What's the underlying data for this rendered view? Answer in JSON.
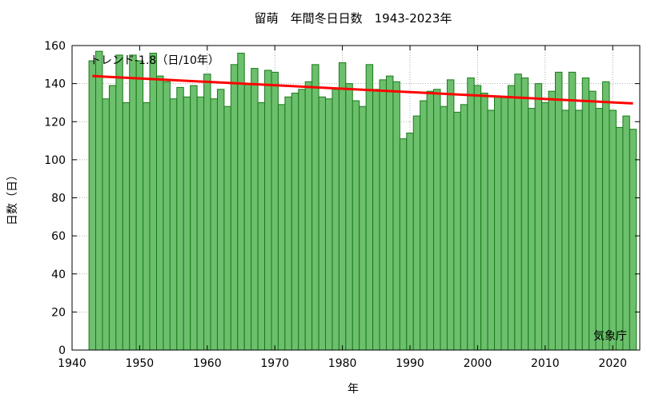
{
  "chart_data": {
    "type": "bar",
    "title": "留萌　年間冬日日数　1943-2023年",
    "xlabel": "年",
    "ylabel": "日数（日）",
    "trend_label": "トレンド-1.8（日/10年）",
    "source": "気象庁",
    "xlim": [
      1940,
      2024
    ],
    "ylim": [
      0,
      160
    ],
    "xticks": [
      1940,
      1950,
      1960,
      1970,
      1980,
      1990,
      2000,
      2010,
      2020
    ],
    "yticks": [
      0,
      20,
      40,
      60,
      80,
      100,
      120,
      140,
      160
    ],
    "grid": true,
    "x": [
      1943,
      1944,
      1945,
      1946,
      1947,
      1948,
      1949,
      1950,
      1951,
      1952,
      1953,
      1954,
      1955,
      1956,
      1957,
      1958,
      1959,
      1960,
      1961,
      1962,
      1963,
      1964,
      1965,
      1966,
      1967,
      1968,
      1969,
      1970,
      1971,
      1972,
      1973,
      1974,
      1975,
      1976,
      1977,
      1978,
      1979,
      1980,
      1981,
      1982,
      1983,
      1984,
      1985,
      1986,
      1987,
      1988,
      1989,
      1990,
      1991,
      1992,
      1993,
      1994,
      1995,
      1996,
      1997,
      1998,
      1999,
      2000,
      2001,
      2002,
      2003,
      2004,
      2005,
      2006,
      2007,
      2008,
      2009,
      2010,
      2011,
      2012,
      2013,
      2014,
      2015,
      2016,
      2017,
      2018,
      2019,
      2020,
      2021,
      2022,
      2023
    ],
    "values": [
      152,
      157,
      132,
      139,
      155,
      130,
      155,
      152,
      130,
      156,
      144,
      141,
      132,
      138,
      133,
      139,
      133,
      145,
      132,
      137,
      128,
      150,
      156,
      140,
      148,
      130,
      147,
      146,
      129,
      133,
      135,
      137,
      141,
      150,
      133,
      132,
      137,
      151,
      140,
      131,
      128,
      150,
      137,
      142,
      144,
      141,
      111,
      114,
      123,
      131,
      136,
      137,
      128,
      142,
      125,
      129,
      143,
      139,
      135,
      126,
      133,
      133,
      139,
      145,
      143,
      127,
      140,
      130,
      136,
      146,
      126,
      146,
      126,
      143,
      136,
      127,
      141,
      126,
      117,
      123,
      116
    ],
    "trend": {
      "x": [
        1943,
        2023
      ],
      "y": [
        144.0,
        129.6
      ]
    },
    "colors": {
      "bar_fill": "#6cbf6c",
      "bar_stroke": "#1a7a1a",
      "trend": "#ff0000"
    }
  }
}
